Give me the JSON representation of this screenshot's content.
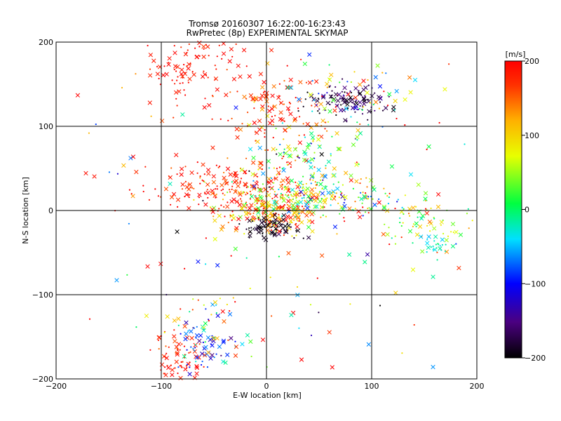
{
  "chart_data": {
    "type": "scatter",
    "title": "Tromsø 20160307 16:22:00-16:23:43",
    "subtitle": "RwPretec (8p) EXPERIMENTAL SKYMAP",
    "xlabel": "E-W location [km]",
    "ylabel": "N-S location [km]",
    "xlim": [
      -200,
      200
    ],
    "ylim": [
      -200,
      200
    ],
    "x_ticks": [
      -200,
      -100,
      0,
      100,
      200
    ],
    "y_ticks": [
      -200,
      -100,
      0,
      100,
      200
    ],
    "x_tick_labels": [
      "−200",
      "−100",
      "0",
      "100",
      "200"
    ],
    "y_tick_labels": [
      "−200",
      "−100",
      "0",
      "100",
      "200"
    ],
    "grid": true,
    "colorbar": {
      "label": "[m/s]",
      "range": [
        -200,
        200
      ],
      "ticks": [
        -200,
        -100,
        0,
        100,
        200
      ],
      "tick_labels": [
        "−200",
        "−100",
        "0",
        "100",
        "200"
      ],
      "colormap": "rainbow (black-purple-blue-cyan-green-yellow-orange-red)"
    },
    "clusters": [
      {
        "x": -70,
        "y": 175,
        "sx": 28,
        "sy": 25,
        "n": 110,
        "v": 190,
        "vs": 15
      },
      {
        "x": 5,
        "y": 120,
        "sx": 25,
        "sy": 25,
        "n": 110,
        "v": 170,
        "vs": 35
      },
      {
        "x": 80,
        "y": 130,
        "sx": 18,
        "sy": 10,
        "n": 110,
        "v": -170,
        "vs": 25
      },
      {
        "x": 75,
        "y": 140,
        "sx": 35,
        "sy": 25,
        "n": 60,
        "v": 40,
        "vs": 90
      },
      {
        "x": -40,
        "y": 30,
        "sx": 40,
        "sy": 14,
        "n": 180,
        "v": 185,
        "vs": 25
      },
      {
        "x": 10,
        "y": 0,
        "sx": 30,
        "sy": 12,
        "n": 230,
        "v": 130,
        "vs": 70
      },
      {
        "x": 45,
        "y": 20,
        "sx": 28,
        "sy": 12,
        "n": 150,
        "v": 20,
        "vs": 90
      },
      {
        "x": 40,
        "y": 60,
        "sx": 30,
        "sy": 20,
        "n": 90,
        "v": 20,
        "vs": 70
      },
      {
        "x": 0,
        "y": -20,
        "sx": 14,
        "sy": 6,
        "n": 70,
        "v": -190,
        "vs": 10
      },
      {
        "x": 150,
        "y": -15,
        "sx": 25,
        "sy": 15,
        "n": 60,
        "v": 60,
        "vs": 50
      },
      {
        "x": 160,
        "y": -40,
        "sx": 8,
        "sy": 6,
        "n": 25,
        "v": -20,
        "vs": 15
      },
      {
        "x": 110,
        "y": 5,
        "sx": 20,
        "sy": 10,
        "n": 35,
        "v": 100,
        "vs": 100
      },
      {
        "x": -85,
        "y": -175,
        "sx": 12,
        "sy": 15,
        "n": 70,
        "v": 185,
        "vs": 15
      },
      {
        "x": -60,
        "y": -160,
        "sx": 14,
        "sy": 15,
        "n": 60,
        "v": -80,
        "vs": 40
      },
      {
        "x": -50,
        "y": -130,
        "sx": 25,
        "sy": 20,
        "n": 45,
        "v": 60,
        "vs": 80
      },
      {
        "x": 0,
        "y": 0,
        "sx": 110,
        "sy": 100,
        "n": 160,
        "v": 80,
        "vs": 130
      }
    ]
  }
}
